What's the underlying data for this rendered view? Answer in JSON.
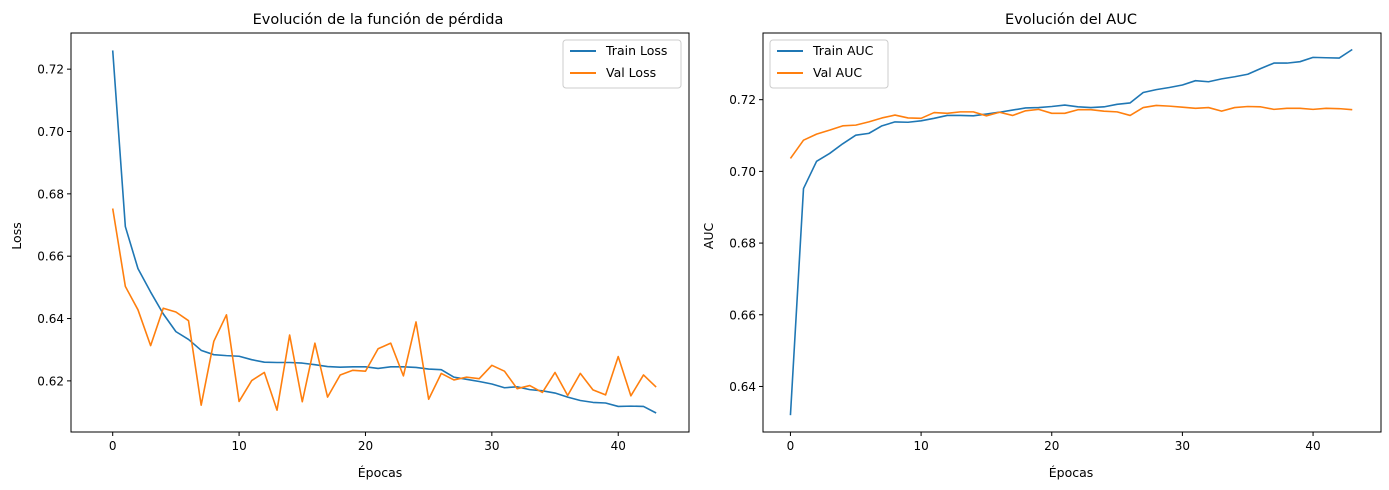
{
  "charts": [
    {
      "id": "loss",
      "title": "Evolución de la función de pérdida",
      "xlabel": "Épocas",
      "ylabel": "Loss",
      "legend_position": "top-right",
      "xlim": [
        -3.3,
        45.6
      ],
      "ylim": [
        0.6036,
        0.7316
      ],
      "xticks": [
        "0",
        "10",
        "20",
        "30",
        "40"
      ],
      "yticks": [
        "0.62",
        "0.64",
        "0.66",
        "0.68",
        "0.70",
        "0.72"
      ]
    },
    {
      "id": "auc",
      "title": "Evolución del AUC",
      "xlabel": "Épocas",
      "ylabel": "AUC",
      "legend_position": "top-left",
      "xlim": [
        -2.1,
        45.2
      ],
      "ylim": [
        0.6273,
        0.7386
      ],
      "xticks": [
        "0",
        "10",
        "20",
        "30",
        "40"
      ],
      "yticks": [
        "0.64",
        "0.66",
        "0.68",
        "0.70",
        "0.72"
      ]
    }
  ],
  "colors": {
    "train": "#1f77b4",
    "val": "#ff7f0e"
  },
  "chart_data": [
    {
      "type": "line",
      "title": "Evolución de la función de pérdida",
      "xlabel": "Épocas",
      "ylabel": "Loss",
      "x": [
        0,
        1,
        2,
        3,
        4,
        5,
        6,
        7,
        8,
        9,
        10,
        11,
        12,
        13,
        14,
        15,
        16,
        17,
        18,
        19,
        20,
        21,
        22,
        23,
        24,
        25,
        26,
        27,
        28,
        29,
        30,
        31,
        32,
        33,
        34,
        35,
        36,
        37,
        38,
        39,
        40,
        41,
        42,
        43
      ],
      "series": [
        {
          "name": "Train Loss",
          "values": [
            0.726,
            0.6695,
            0.656,
            0.6485,
            0.6415,
            0.6358,
            0.6333,
            0.6298,
            0.6284,
            0.6281,
            0.6279,
            0.6268,
            0.626,
            0.6259,
            0.6259,
            0.6257,
            0.6252,
            0.6246,
            0.6244,
            0.6245,
            0.6245,
            0.624,
            0.6245,
            0.6245,
            0.6243,
            0.6238,
            0.6236,
            0.6212,
            0.6205,
            0.6198,
            0.619,
            0.6178,
            0.6181,
            0.6172,
            0.6168,
            0.6161,
            0.6148,
            0.6137,
            0.6131,
            0.6129,
            0.6118,
            0.6119,
            0.6118,
            0.6097
          ]
        },
        {
          "name": "Val Loss",
          "values": [
            0.6753,
            0.6503,
            0.6428,
            0.6313,
            0.6433,
            0.6421,
            0.6393,
            0.6122,
            0.6327,
            0.6412,
            0.6134,
            0.6201,
            0.6227,
            0.6106,
            0.6347,
            0.6133,
            0.6321,
            0.6148,
            0.6219,
            0.6234,
            0.6231,
            0.6303,
            0.6321,
            0.6216,
            0.6389,
            0.6141,
            0.6224,
            0.6203,
            0.6212,
            0.6207,
            0.625,
            0.6231,
            0.6175,
            0.6185,
            0.6163,
            0.6227,
            0.6153,
            0.6224,
            0.6171,
            0.6155,
            0.6278,
            0.6152,
            0.6219,
            0.618
          ]
        }
      ]
    },
    {
      "type": "line",
      "title": "Evolución del AUC",
      "xlabel": "Épocas",
      "ylabel": "AUC",
      "x": [
        0,
        1,
        2,
        3,
        4,
        5,
        6,
        7,
        8,
        9,
        10,
        11,
        12,
        13,
        14,
        15,
        16,
        17,
        18,
        19,
        20,
        21,
        22,
        23,
        24,
        25,
        26,
        27,
        28,
        29,
        30,
        31,
        32,
        33,
        34,
        35,
        36,
        37,
        38,
        39,
        40,
        41,
        42,
        43
      ],
      "series": [
        {
          "name": "Train AUC",
          "values": [
            0.632,
            0.6952,
            0.7028,
            0.705,
            0.7077,
            0.7101,
            0.7106,
            0.7127,
            0.7138,
            0.7137,
            0.7141,
            0.7148,
            0.7156,
            0.7156,
            0.7155,
            0.716,
            0.7165,
            0.7171,
            0.7177,
            0.7178,
            0.7181,
            0.7185,
            0.718,
            0.7178,
            0.718,
            0.7187,
            0.7191,
            0.722,
            0.7228,
            0.7234,
            0.7241,
            0.7253,
            0.725,
            0.7258,
            0.7264,
            0.7271,
            0.7287,
            0.7302,
            0.7302,
            0.7306,
            0.7318,
            0.7317,
            0.7316,
            0.734
          ]
        },
        {
          "name": "Val AUC",
          "values": [
            0.7036,
            0.7087,
            0.7104,
            0.7115,
            0.7127,
            0.7129,
            0.7138,
            0.7149,
            0.7157,
            0.7149,
            0.7148,
            0.7164,
            0.7162,
            0.7166,
            0.7166,
            0.7155,
            0.7165,
            0.7156,
            0.7169,
            0.7173,
            0.7162,
            0.7162,
            0.7172,
            0.7172,
            0.7168,
            0.7166,
            0.7156,
            0.7178,
            0.7184,
            0.7182,
            0.7179,
            0.7176,
            0.7178,
            0.7168,
            0.7178,
            0.7181,
            0.718,
            0.7173,
            0.7176,
            0.7176,
            0.7173,
            0.7176,
            0.7175,
            0.7172
          ]
        }
      ]
    }
  ]
}
